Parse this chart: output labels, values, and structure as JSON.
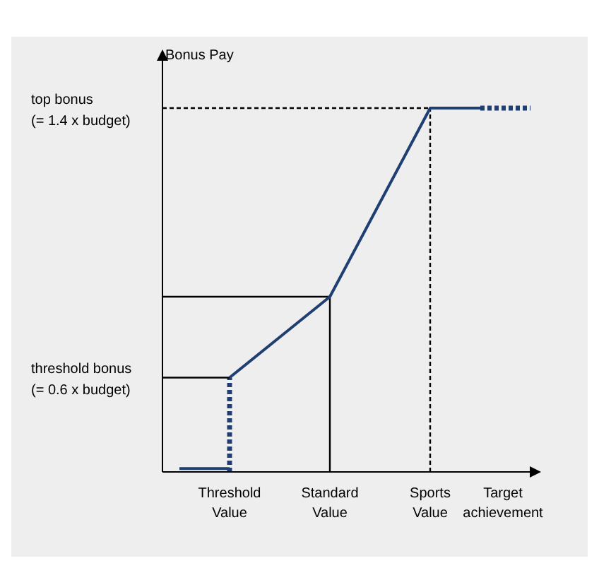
{
  "chart_data": {
    "type": "line",
    "ylabel": "Bonus Pay",
    "xlabel": "Target achievement",
    "categories": [
      null,
      "Threshold Value",
      null,
      "Standard Value",
      null,
      "Sports Value",
      null,
      null
    ],
    "ylim": [
      0.32,
      1.57
    ],
    "yticks": [
      {
        "value": 0.6,
        "label": "threshold bonus\n(= 0.6 x budget)"
      },
      {
        "value": 1.4,
        "label": "top bonus\n(= 1.4 x budget)"
      }
    ],
    "series": [
      {
        "color": "#1f3f73",
        "line_style": "solid",
        "values": [
          0.33,
          0.33,
          null,
          null,
          null,
          null,
          null,
          null
        ]
      },
      {
        "color": "#1f3f73",
        "line_style": "solid",
        "values": [
          null,
          0.6,
          0.72,
          0.84,
          1.12,
          1.4,
          1.4,
          null
        ]
      },
      {
        "color": "#1f3f73",
        "line_style": "dotted",
        "values": [
          null,
          null,
          null,
          null,
          null,
          null,
          1.4,
          1.4
        ]
      }
    ],
    "ref_lines": [
      {
        "axis": "x",
        "value": "Threshold Value",
        "color": "#1f3f73",
        "line_style": "dotted"
      },
      {
        "axis": "y",
        "value": 1.4,
        "line_style": "dotted"
      },
      {
        "axis": "y",
        "value": 0.84,
        "line_style": "solid"
      },
      {
        "axis": "y",
        "value": 0.6,
        "line_style": "solid"
      },
      {
        "axis": "x",
        "value": "Standard Value",
        "line_style": "solid"
      },
      {
        "axis": "x",
        "value": "Sports Value",
        "line_style": "dotted"
      }
    ]
  }
}
